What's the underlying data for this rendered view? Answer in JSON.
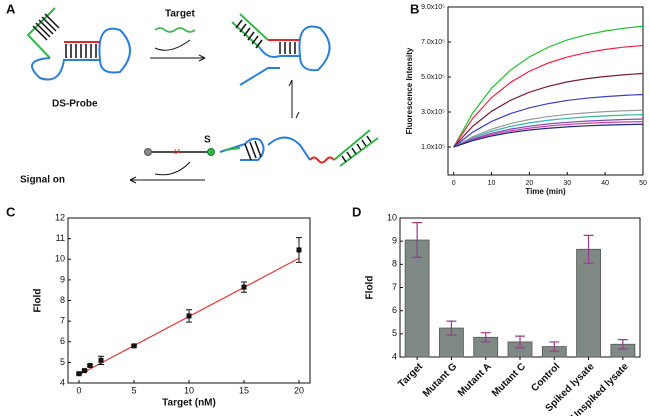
{
  "diagram": {
    "label": "A",
    "target": "Target",
    "probe": "DS-Probe",
    "strand": "S",
    "base": "tA",
    "signal": "Signal on"
  },
  "chart_data": [
    {
      "type": "line",
      "label": "B",
      "xlabel": "Time (min)",
      "ylabel": "Fluorescence Intensity",
      "x": [
        0,
        5,
        10,
        15,
        20,
        25,
        30,
        35,
        40,
        45,
        50
      ],
      "xlim": [
        -1.5,
        50
      ],
      "xticks": [
        0,
        10,
        20,
        30,
        40,
        50
      ],
      "ylim": [
        -60000,
        900000
      ],
      "yticks": [
        {
          "value": 100000,
          "label": "1.0x10⁵"
        },
        {
          "value": 300000,
          "label": "3.0x10⁵"
        },
        {
          "value": 500000,
          "label": "5.0x10⁵"
        },
        {
          "value": 700000,
          "label": "7.0x10⁵"
        },
        {
          "value": 900000,
          "label": "9.0x10⁵"
        }
      ],
      "series": [
        {
          "color": "#22c02a",
          "values": [
            100000,
            293000,
            436000,
            539000,
            615000,
            670000,
            712000,
            741000,
            763000,
            779000,
            790000
          ]
        },
        {
          "color": "#ee2244",
          "values": [
            100000,
            263000,
            382000,
            469000,
            533000,
            580000,
            614000,
            639000,
            657000,
            671000,
            680000
          ]
        },
        {
          "color": "#7a1c3c",
          "values": [
            100000,
            218000,
            304000,
            367000,
            413000,
            447000,
            472000,
            490000,
            503000,
            513000,
            520000
          ]
        },
        {
          "color": "#3b3fc8",
          "values": [
            100000,
            184000,
            246000,
            291000,
            324000,
            348000,
            366000,
            379000,
            388000,
            395000,
            400000
          ]
        },
        {
          "color": "#9a9a9a",
          "values": [
            100000,
            159000,
            202000,
            234000,
            257000,
            274000,
            286000,
            295000,
            302000,
            307000,
            310000
          ]
        },
        {
          "color": "#35b6a8",
          "values": [
            100000,
            152000,
            190000,
            218000,
            238000,
            253000,
            264000,
            272000,
            278000,
            282000,
            285000
          ]
        },
        {
          "color": "#7a4fb0",
          "values": [
            100000,
            145000,
            178000,
            202000,
            219000,
            232000,
            241000,
            248000,
            253000,
            257000,
            260000
          ]
        },
        {
          "color": "#d23ca8",
          "values": [
            100000,
            141000,
            171000,
            192000,
            208000,
            220000,
            229000,
            235000,
            240000,
            243000,
            245000
          ]
        },
        {
          "color": "#1c2a7a",
          "values": [
            100000,
            136000,
            163000,
            183000,
            197000,
            207000,
            215000,
            221000,
            225000,
            228000,
            230000
          ]
        }
      ]
    },
    {
      "type": "scatter",
      "label": "C",
      "xlabel": "Target (nM)",
      "ylabel": "Flold",
      "x": [
        0,
        0.5,
        1,
        2,
        5,
        10,
        15,
        20
      ],
      "values": [
        4.45,
        4.6,
        4.85,
        5.1,
        5.8,
        7.25,
        8.65,
        10.45
      ],
      "errors": [
        0.05,
        0.05,
        0.05,
        0.2,
        0.05,
        0.3,
        0.25,
        0.6
      ],
      "color": "#111111",
      "fit": {
        "x": [
          0,
          20
        ],
        "y": [
          4.4,
          10.05
        ],
        "color": "#e03a3a"
      },
      "xlim": [
        -1,
        21
      ],
      "xticks": [
        0,
        5,
        10,
        15,
        20
      ],
      "ylim": [
        4,
        12
      ],
      "yticks": [
        4,
        5,
        6,
        7,
        8,
        9,
        10,
        11,
        12
      ]
    },
    {
      "type": "bar",
      "label": "D",
      "ylabel": "Flold",
      "categories": [
        "Target",
        "Mutant G",
        "Mutant A",
        "Mutant C",
        "Control",
        "Spiked lysate",
        "Unspiked lysate"
      ],
      "values": [
        9.05,
        5.25,
        4.85,
        4.65,
        4.45,
        8.65,
        4.55
      ],
      "errors": [
        0.75,
        0.3,
        0.2,
        0.25,
        0.2,
        0.6,
        0.2
      ],
      "color": "#7f8a85",
      "error_color": "#9b3a8a",
      "ylim": [
        4,
        10
      ],
      "yticks": [
        4,
        5,
        6,
        7,
        8,
        9,
        10
      ]
    }
  ]
}
